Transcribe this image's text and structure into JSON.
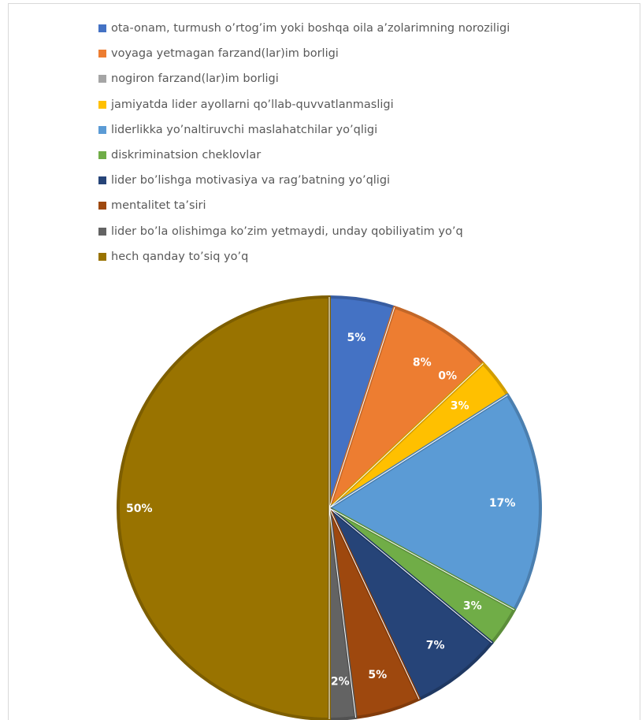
{
  "chart_data": {
    "type": "pie",
    "title": "",
    "legend_position": "top",
    "slices": [
      {
        "label": "ota-onam, turmush o’rtog’im yoki boshqa oila a’zolarimning noroziligi",
        "value": 5,
        "value_label": "5%",
        "color": "#4472c4"
      },
      {
        "label": "voyaga yetmagan farzand(lar)im borligi",
        "value": 8,
        "value_label": "8%",
        "color": "#ed7d31"
      },
      {
        "label": "nogiron farzand(lar)im borligi",
        "value": 0,
        "value_label": "0%",
        "color": "#a5a5a5"
      },
      {
        "label": "jamiyatda lider ayollarni qo’llab-quvvatlanmasligi",
        "value": 3,
        "value_label": "3%",
        "color": "#ffc000"
      },
      {
        "label": "liderlikka yo’naltiruvchi maslahatchilar yo’qligi",
        "value": 17,
        "value_label": "17%",
        "color": "#5b9bd5"
      },
      {
        "label": "diskriminatsion cheklovlar",
        "value": 3,
        "value_label": "3%",
        "color": "#70ad47"
      },
      {
        "label": "lider bo’lishga motivasiya va rag’batning yo’qligi",
        "value": 7,
        "value_label": "7%",
        "color": "#264478"
      },
      {
        "label": "mentalitet ta’siri",
        "value": 5,
        "value_label": "5%",
        "color": "#9e480e"
      },
      {
        "label": "lider bo’la olishimga ko’zim yetmaydi, unday qobiliyatim yo’q",
        "value": 2,
        "value_label": "2%",
        "color": "#636363"
      },
      {
        "label": "hech qanday to’siq yo’q",
        "value": 50,
        "value_label": "50%",
        "color": "#997300"
      }
    ]
  }
}
